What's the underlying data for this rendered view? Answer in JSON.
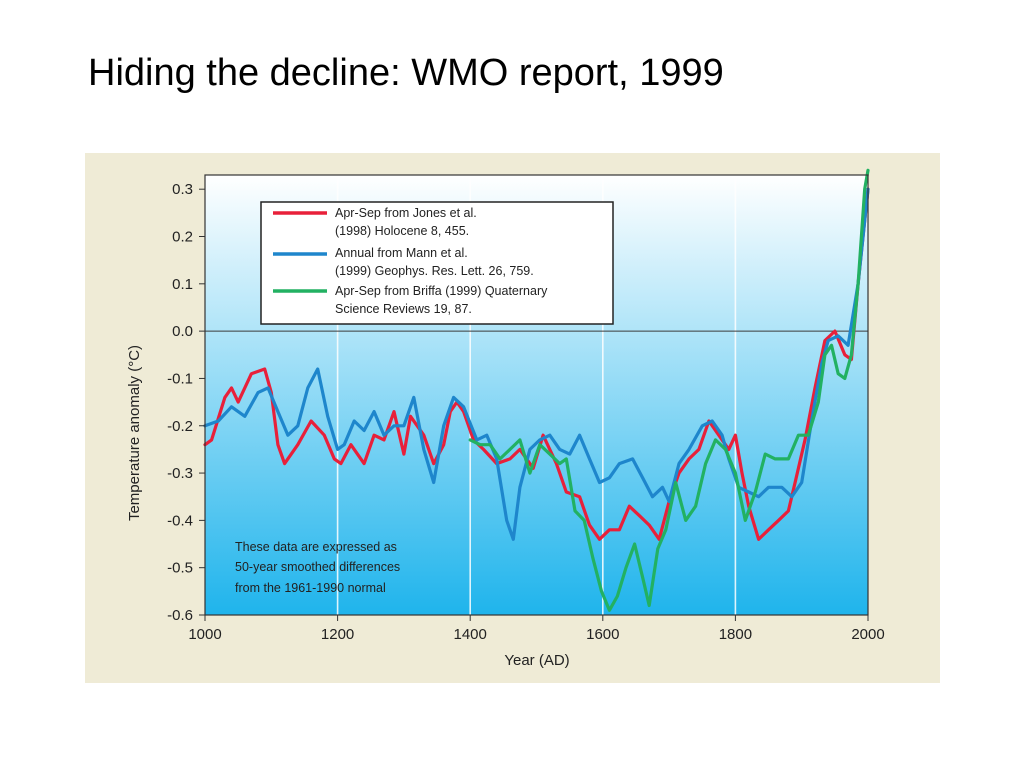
{
  "slide": {
    "title": "Hiding the decline: WMO report, 1999"
  },
  "colors": {
    "panel_background": "#efebd6",
    "plot_top": "#ffffff",
    "plot_bottom": "#1fb4ec",
    "jones": "#e8203a",
    "mann": "#1e86cc",
    "briffa": "#22b162"
  },
  "chart_data": {
    "type": "line",
    "title": "",
    "xlabel": "Year (AD)",
    "ylabel": "Temperature anomaly (°C)",
    "xlim": [
      1000,
      2000
    ],
    "ylim": [
      -0.6,
      0.33
    ],
    "x_ticks": [
      1000,
      1200,
      1400,
      1600,
      1800,
      2000
    ],
    "x_tick_labels": [
      "1000",
      "1200",
      "1400",
      "1600",
      "1800",
      "2000"
    ],
    "y_ticks": [
      0.3,
      0.2,
      0.1,
      0.0,
      -0.1,
      -0.2,
      -0.3,
      -0.4,
      -0.5,
      -0.6
    ],
    "y_tick_labels": [
      "0.3",
      "0.2",
      "0.1",
      "0.0",
      "-0.1",
      "-0.2",
      "-0.3",
      "-0.4",
      "-0.5",
      "-0.6"
    ],
    "grid": "vertical lines at 1200, 1400, 1600, 1800; horizontal zero line",
    "legend": {
      "placement": "top-left",
      "entries": [
        {
          "lines": [
            "Apr-Sep from Jones et al.",
            "(1998) Holocene 8, 455."
          ],
          "color": "#e8203a"
        },
        {
          "lines": [
            "Annual from Mann et al.",
            "(1999) Geophys. Res. Lett. 26, 759."
          ],
          "color": "#1e86cc"
        },
        {
          "lines": [
            "Apr-Sep from Briffa (1999) Quaternary",
            "Science Reviews 19, 87."
          ],
          "color": "#22b162"
        }
      ]
    },
    "annotation": {
      "placement": "bottom-left",
      "lines": [
        "These data are expressed as",
        "50-year smoothed differences",
        "from the 1961-1990 normal"
      ]
    },
    "series": [
      {
        "color": "#e8203a",
        "points": [
          [
            1000,
            -0.24
          ],
          [
            1010,
            -0.23
          ],
          [
            1030,
            -0.14
          ],
          [
            1040,
            -0.12
          ],
          [
            1050,
            -0.15
          ],
          [
            1070,
            -0.09
          ],
          [
            1090,
            -0.08
          ],
          [
            1100,
            -0.13
          ],
          [
            1110,
            -0.24
          ],
          [
            1120,
            -0.28
          ],
          [
            1140,
            -0.24
          ],
          [
            1160,
            -0.19
          ],
          [
            1180,
            -0.22
          ],
          [
            1195,
            -0.27
          ],
          [
            1205,
            -0.28
          ],
          [
            1220,
            -0.24
          ],
          [
            1240,
            -0.28
          ],
          [
            1255,
            -0.22
          ],
          [
            1270,
            -0.23
          ],
          [
            1285,
            -0.17
          ],
          [
            1300,
            -0.26
          ],
          [
            1310,
            -0.18
          ],
          [
            1330,
            -0.22
          ],
          [
            1345,
            -0.28
          ],
          [
            1360,
            -0.24
          ],
          [
            1370,
            -0.17
          ],
          [
            1380,
            -0.15
          ],
          [
            1390,
            -0.17
          ],
          [
            1405,
            -0.23
          ],
          [
            1420,
            -0.25
          ],
          [
            1440,
            -0.28
          ],
          [
            1460,
            -0.27
          ],
          [
            1475,
            -0.25
          ],
          [
            1495,
            -0.29
          ],
          [
            1510,
            -0.22
          ],
          [
            1530,
            -0.28
          ],
          [
            1545,
            -0.34
          ],
          [
            1565,
            -0.35
          ],
          [
            1580,
            -0.41
          ],
          [
            1595,
            -0.44
          ],
          [
            1610,
            -0.42
          ],
          [
            1625,
            -0.42
          ],
          [
            1640,
            -0.37
          ],
          [
            1655,
            -0.39
          ],
          [
            1670,
            -0.41
          ],
          [
            1685,
            -0.44
          ],
          [
            1700,
            -0.36
          ],
          [
            1715,
            -0.3
          ],
          [
            1730,
            -0.27
          ],
          [
            1745,
            -0.25
          ],
          [
            1760,
            -0.19
          ],
          [
            1775,
            -0.22
          ],
          [
            1790,
            -0.25
          ],
          [
            1800,
            -0.22
          ],
          [
            1810,
            -0.3
          ],
          [
            1820,
            -0.37
          ],
          [
            1835,
            -0.44
          ],
          [
            1850,
            -0.42
          ],
          [
            1865,
            -0.4
          ],
          [
            1880,
            -0.38
          ],
          [
            1890,
            -0.32
          ],
          [
            1905,
            -0.23
          ],
          [
            1920,
            -0.12
          ],
          [
            1935,
            -0.02
          ],
          [
            1950,
            0.0
          ],
          [
            1965,
            -0.05
          ],
          [
            1975,
            -0.06
          ],
          [
            1985,
            0.1
          ],
          [
            2000,
            0.3
          ]
        ]
      },
      {
        "color": "#1e86cc",
        "points": [
          [
            1000,
            -0.2
          ],
          [
            1020,
            -0.19
          ],
          [
            1040,
            -0.16
          ],
          [
            1060,
            -0.18
          ],
          [
            1080,
            -0.13
          ],
          [
            1095,
            -0.12
          ],
          [
            1110,
            -0.17
          ],
          [
            1125,
            -0.22
          ],
          [
            1140,
            -0.2
          ],
          [
            1155,
            -0.12
          ],
          [
            1170,
            -0.08
          ],
          [
            1185,
            -0.18
          ],
          [
            1200,
            -0.25
          ],
          [
            1210,
            -0.24
          ],
          [
            1225,
            -0.19
          ],
          [
            1240,
            -0.21
          ],
          [
            1255,
            -0.17
          ],
          [
            1270,
            -0.22
          ],
          [
            1285,
            -0.2
          ],
          [
            1300,
            -0.2
          ],
          [
            1315,
            -0.14
          ],
          [
            1330,
            -0.25
          ],
          [
            1345,
            -0.32
          ],
          [
            1360,
            -0.2
          ],
          [
            1375,
            -0.14
          ],
          [
            1390,
            -0.16
          ],
          [
            1410,
            -0.23
          ],
          [
            1425,
            -0.22
          ],
          [
            1440,
            -0.27
          ],
          [
            1455,
            -0.4
          ],
          [
            1465,
            -0.44
          ],
          [
            1475,
            -0.33
          ],
          [
            1490,
            -0.25
          ],
          [
            1505,
            -0.23
          ],
          [
            1520,
            -0.22
          ],
          [
            1535,
            -0.25
          ],
          [
            1550,
            -0.26
          ],
          [
            1565,
            -0.22
          ],
          [
            1580,
            -0.27
          ],
          [
            1595,
            -0.32
          ],
          [
            1610,
            -0.31
          ],
          [
            1625,
            -0.28
          ],
          [
            1645,
            -0.27
          ],
          [
            1660,
            -0.31
          ],
          [
            1675,
            -0.35
          ],
          [
            1690,
            -0.33
          ],
          [
            1700,
            -0.36
          ],
          [
            1715,
            -0.28
          ],
          [
            1730,
            -0.25
          ],
          [
            1750,
            -0.2
          ],
          [
            1765,
            -0.19
          ],
          [
            1780,
            -0.22
          ],
          [
            1790,
            -0.27
          ],
          [
            1805,
            -0.33
          ],
          [
            1820,
            -0.34
          ],
          [
            1835,
            -0.35
          ],
          [
            1850,
            -0.33
          ],
          [
            1870,
            -0.33
          ],
          [
            1885,
            -0.35
          ],
          [
            1900,
            -0.32
          ],
          [
            1915,
            -0.19
          ],
          [
            1930,
            -0.07
          ],
          [
            1940,
            -0.02
          ],
          [
            1955,
            -0.01
          ],
          [
            1970,
            -0.03
          ],
          [
            1985,
            0.1
          ],
          [
            2000,
            0.3
          ]
        ]
      },
      {
        "color": "#22b162",
        "points": [
          [
            1400,
            -0.23
          ],
          [
            1415,
            -0.24
          ],
          [
            1430,
            -0.24
          ],
          [
            1445,
            -0.27
          ],
          [
            1460,
            -0.25
          ],
          [
            1475,
            -0.23
          ],
          [
            1490,
            -0.3
          ],
          [
            1505,
            -0.24
          ],
          [
            1520,
            -0.26
          ],
          [
            1535,
            -0.28
          ],
          [
            1545,
            -0.27
          ],
          [
            1558,
            -0.38
          ],
          [
            1572,
            -0.4
          ],
          [
            1585,
            -0.48
          ],
          [
            1598,
            -0.55
          ],
          [
            1610,
            -0.59
          ],
          [
            1622,
            -0.56
          ],
          [
            1635,
            -0.5
          ],
          [
            1648,
            -0.45
          ],
          [
            1660,
            -0.52
          ],
          [
            1670,
            -0.58
          ],
          [
            1683,
            -0.46
          ],
          [
            1695,
            -0.42
          ],
          [
            1710,
            -0.32
          ],
          [
            1725,
            -0.4
          ],
          [
            1740,
            -0.37
          ],
          [
            1755,
            -0.28
          ],
          [
            1770,
            -0.23
          ],
          [
            1785,
            -0.25
          ],
          [
            1800,
            -0.3
          ],
          [
            1815,
            -0.4
          ],
          [
            1830,
            -0.34
          ],
          [
            1845,
            -0.26
          ],
          [
            1860,
            -0.27
          ],
          [
            1880,
            -0.27
          ],
          [
            1895,
            -0.22
          ],
          [
            1910,
            -0.22
          ],
          [
            1925,
            -0.15
          ],
          [
            1935,
            -0.05
          ],
          [
            1945,
            -0.03
          ],
          [
            1955,
            -0.09
          ],
          [
            1965,
            -0.1
          ],
          [
            1975,
            -0.05
          ],
          [
            1985,
            0.1
          ],
          [
            1995,
            0.3
          ],
          [
            2000,
            0.34
          ]
        ]
      }
    ]
  }
}
